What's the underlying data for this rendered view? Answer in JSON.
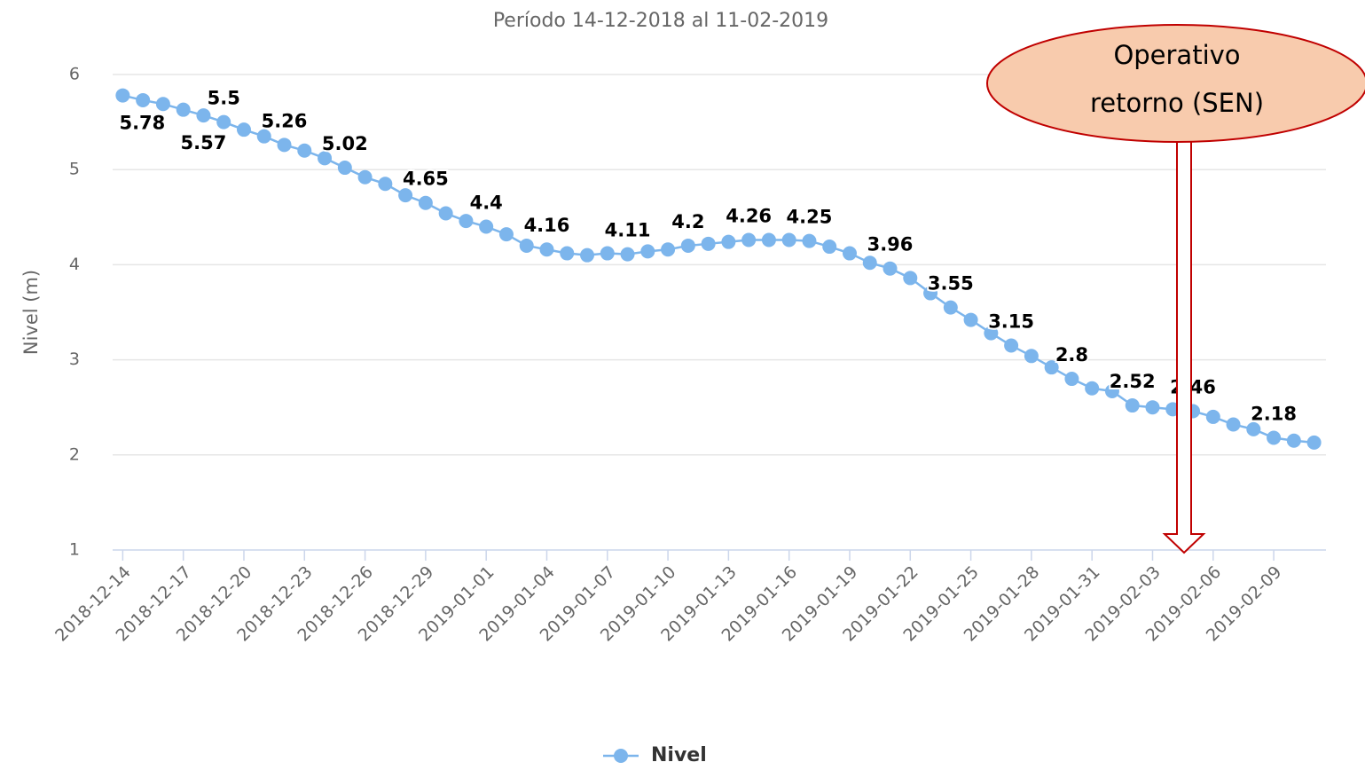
{
  "chart_data": {
    "type": "line",
    "title": "Período 14-12-2018 al 11-02-2019",
    "y_label": "Nivel (m)",
    "categories": [
      "2018-12-14",
      null,
      null,
      "2018-12-17",
      null,
      null,
      "2018-12-20",
      null,
      null,
      "2018-12-23",
      null,
      null,
      "2018-12-26",
      null,
      null,
      "2018-12-29",
      null,
      null,
      "2019-01-01",
      null,
      null,
      "2019-01-04",
      null,
      null,
      "2019-01-07",
      null,
      null,
      "2019-01-10",
      null,
      null,
      "2019-01-13",
      null,
      null,
      "2019-01-16",
      null,
      null,
      "2019-01-19",
      null,
      null,
      "2019-01-22",
      null,
      null,
      "2019-01-25",
      null,
      null,
      "2019-01-28",
      null,
      null,
      "2019-01-31",
      null,
      null,
      "2019-02-03",
      null,
      null,
      "2019-02-06",
      null,
      null,
      "2019-02-09",
      null,
      null
    ],
    "series": [
      {
        "name": "Nivel",
        "color": "#7cb5ec",
        "values": [
          5.78,
          5.73,
          5.69,
          5.63,
          5.57,
          5.5,
          5.42,
          5.35,
          5.26,
          5.2,
          5.12,
          5.02,
          4.92,
          4.85,
          4.73,
          4.65,
          4.54,
          4.46,
          4.4,
          4.32,
          4.2,
          4.16,
          4.12,
          4.1,
          4.12,
          4.11,
          4.14,
          4.16,
          4.2,
          4.22,
          4.24,
          4.26,
          4.26,
          4.26,
          4.25,
          4.19,
          4.12,
          4.02,
          3.96,
          3.86,
          3.7,
          3.55,
          3.42,
          3.28,
          3.15,
          3.04,
          2.92,
          2.8,
          2.7,
          2.67,
          2.52,
          2.5,
          2.48,
          2.46,
          2.4,
          2.32,
          2.27,
          2.18,
          2.15,
          2.13
        ],
        "value_labels": [
          "5.78",
          null,
          null,
          null,
          "5.57",
          "5.5",
          null,
          null,
          "5.26",
          null,
          null,
          "5.02",
          null,
          null,
          null,
          "4.65",
          null,
          null,
          "4.4",
          null,
          null,
          "4.16",
          null,
          null,
          null,
          "4.11",
          null,
          null,
          "4.2",
          null,
          null,
          "4.26",
          null,
          null,
          "4.25",
          null,
          null,
          null,
          "3.96",
          null,
          null,
          "3.55",
          null,
          null,
          "3.15",
          null,
          null,
          "2.8",
          null,
          null,
          "2.52",
          null,
          null,
          "2.46",
          null,
          null,
          null,
          "2.18",
          null,
          null
        ]
      }
    ],
    "ylim": [
      1,
      6
    ],
    "yticks": [
      1,
      2,
      3,
      4,
      5,
      6
    ],
    "grid": true,
    "annotation": [
      "Operativo",
      "retorno (SEN)"
    ]
  }
}
